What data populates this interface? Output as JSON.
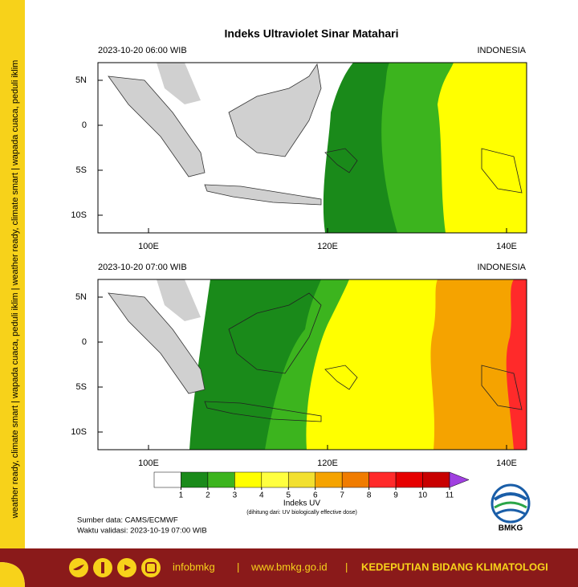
{
  "side_text": "weather ready, climate smart | wapada cuaca, peduli iklim | weather ready, climate smart | wapada cuaca, peduli iklim",
  "title": "Indeks Ultraviolet Sinar Matahari",
  "panels": [
    {
      "time": "2023-10-20  06:00 WIB",
      "region": "INDONESIA"
    },
    {
      "time": "2023-10-20  07:00 WIB",
      "region": "INDONESIA"
    }
  ],
  "lat_labels": [
    "5N",
    "0",
    "5S",
    "10S"
  ],
  "lon_labels": [
    "100E",
    "120E",
    "140E"
  ],
  "colorbar": {
    "lim": [
      0,
      11
    ],
    "ticks": [
      1,
      2,
      3,
      4,
      5,
      6,
      7,
      8,
      9,
      10,
      11
    ],
    "colors": [
      "#ffffff",
      "#1a8a1a",
      "#3cb41e",
      "#ffff00",
      "#ffff40",
      "#f2e030",
      "#f5a300",
      "#f07c00",
      "#ff2a2a",
      "#e60000",
      "#c80000"
    ],
    "extend_color": "#a040e0",
    "label": "Indeks UV",
    "note": "(dihitung dari: UV biologically effective dose)"
  },
  "source": "Sumber data: CAMS/ECMWF",
  "valid": "Waktu validasi: 2023-10-19 07:00 WIB",
  "logo": "BMKG",
  "footer": {
    "handle": "infobmkg",
    "sep1": "|",
    "url": "www.bmkg.go.id",
    "sep2": "|",
    "org": "KEDEPUTIAN BIDANG KLIMATOLOGI"
  }
}
